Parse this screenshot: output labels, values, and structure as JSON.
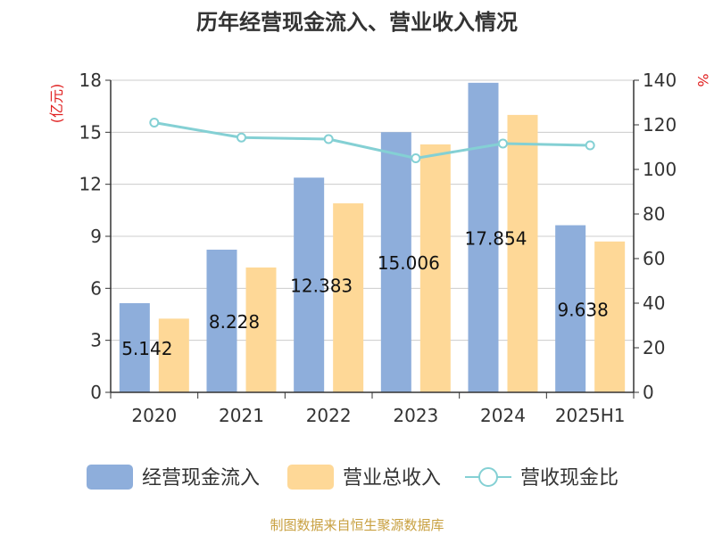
{
  "chart_data": {
    "type": "bar",
    "title": "历年经营现金流入、营业收入情况",
    "categories": [
      "2020",
      "2021",
      "2022",
      "2023",
      "2024",
      "2025H1"
    ],
    "series": [
      {
        "name": "经营现金流入",
        "type": "bar",
        "axis": "left",
        "color": "#8eaedb",
        "values": [
          5.142,
          8.228,
          12.383,
          15.006,
          17.854,
          9.638
        ],
        "labels": [
          "5.142",
          "8.228",
          "12.383",
          "15.006",
          "17.854",
          "9.638"
        ]
      },
      {
        "name": "营业总收入",
        "type": "bar",
        "axis": "left",
        "color": "#fed897",
        "values": [
          4.25,
          7.2,
          10.9,
          14.3,
          16.0,
          8.7
        ]
      },
      {
        "name": "营收现金比",
        "type": "line",
        "axis": "right",
        "color": "#84d0d4",
        "values": [
          121.0,
          114.3,
          113.6,
          105.0,
          111.6,
          110.8
        ]
      }
    ],
    "ylabel_left": "(亿元)",
    "ylabel_right": "%",
    "ylim_left": [
      0,
      18
    ],
    "yticks_left": [
      "0",
      "3",
      "6",
      "9",
      "12",
      "15",
      "18"
    ],
    "ylim_right": [
      0,
      140
    ],
    "yticks_right": [
      "0",
      "20",
      "40",
      "60",
      "80",
      "100",
      "120",
      "140"
    ],
    "grid": true,
    "legend_position": "bottom",
    "source": "制图数据来自恒生聚源数据库"
  }
}
